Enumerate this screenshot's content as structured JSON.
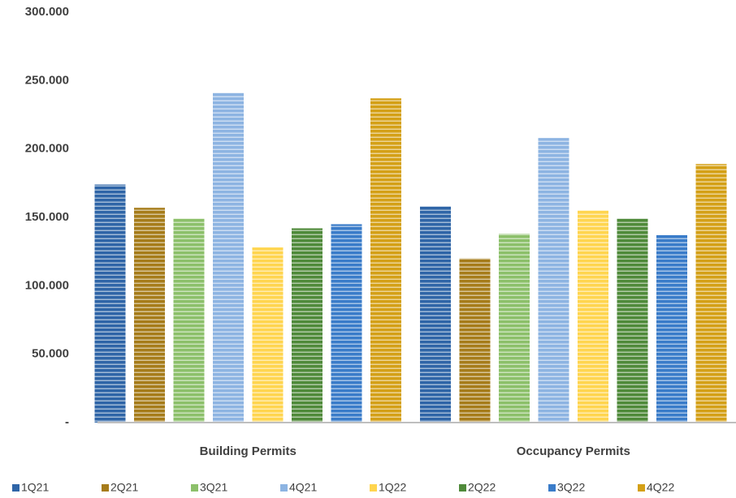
{
  "chart_data": {
    "type": "bar",
    "categories": [
      "Building Permits",
      "Occupancy Permits"
    ],
    "series": [
      {
        "name": "1Q21",
        "color": "#2f65a7",
        "values": [
          174000,
          158000
        ]
      },
      {
        "name": "2Q21",
        "color": "#a67c1a",
        "values": [
          157000,
          120000
        ]
      },
      {
        "name": "3Q21",
        "color": "#8cc06a",
        "values": [
          149000,
          138000
        ]
      },
      {
        "name": "4Q21",
        "color": "#8db4e2",
        "values": [
          241000,
          208000
        ]
      },
      {
        "name": "1Q22",
        "color": "#ffd54f",
        "values": [
          128000,
          155000
        ]
      },
      {
        "name": "2Q22",
        "color": "#4f8a3a",
        "values": [
          142000,
          149000
        ]
      },
      {
        "name": "3Q22",
        "color": "#3a7cc9",
        "values": [
          145000,
          137000
        ]
      },
      {
        "name": "4Q22",
        "color": "#d4a017",
        "values": [
          237000,
          189000
        ]
      }
    ],
    "ylim": [
      0,
      300000
    ],
    "yticks": [
      {
        "value": 0,
        "label": "-"
      },
      {
        "value": 50000,
        "label": "50.000"
      },
      {
        "value": 100000,
        "label": "100.000"
      },
      {
        "value": 150000,
        "label": "150.000"
      },
      {
        "value": 200000,
        "label": "200.000"
      },
      {
        "value": 250000,
        "label": "250.000"
      },
      {
        "value": 300000,
        "label": "300.000"
      }
    ],
    "grid": false,
    "legend": "bottom"
  }
}
